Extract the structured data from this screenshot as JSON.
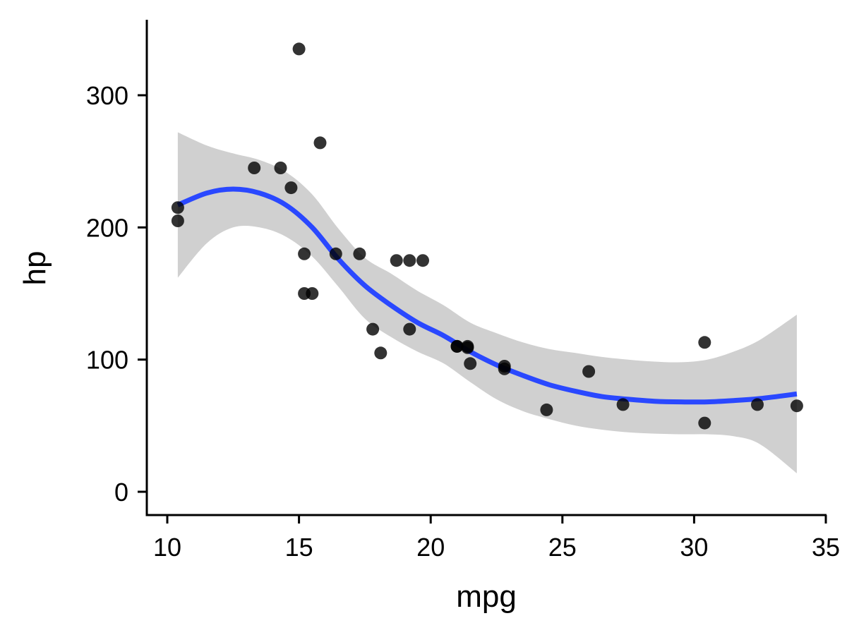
{
  "chart_data": {
    "type": "scatter",
    "title": "",
    "xlabel": "mpg",
    "ylabel": "hp",
    "xlim": [
      9.2,
      35
    ],
    "ylim": [
      -17,
      358
    ],
    "x_ticks": [
      10,
      15,
      20,
      25,
      30,
      35
    ],
    "y_ticks": [
      0,
      100,
      200,
      300
    ],
    "x_tick_labels": [
      "10",
      "15",
      "20",
      "25",
      "30",
      "35"
    ],
    "y_tick_labels": [
      "0",
      "100",
      "200",
      "300"
    ],
    "grid": false,
    "legend": "none",
    "colors": {
      "points": "#000000",
      "smooth_line": "#2A48FF",
      "confidence_band": "#D0D0D0"
    },
    "points": [
      {
        "x": 21.0,
        "y": 110
      },
      {
        "x": 21.0,
        "y": 110
      },
      {
        "x": 22.8,
        "y": 93
      },
      {
        "x": 21.4,
        "y": 110
      },
      {
        "x": 18.7,
        "y": 175
      },
      {
        "x": 18.1,
        "y": 105
      },
      {
        "x": 14.3,
        "y": 245
      },
      {
        "x": 24.4,
        "y": 62
      },
      {
        "x": 22.8,
        "y": 95
      },
      {
        "x": 19.2,
        "y": 123
      },
      {
        "x": 17.8,
        "y": 123
      },
      {
        "x": 16.4,
        "y": 180
      },
      {
        "x": 17.3,
        "y": 180
      },
      {
        "x": 15.2,
        "y": 180
      },
      {
        "x": 10.4,
        "y": 205
      },
      {
        "x": 10.4,
        "y": 215
      },
      {
        "x": 14.7,
        "y": 230
      },
      {
        "x": 32.4,
        "y": 66
      },
      {
        "x": 30.4,
        "y": 52
      },
      {
        "x": 33.9,
        "y": 65
      },
      {
        "x": 21.5,
        "y": 97
      },
      {
        "x": 15.5,
        "y": 150
      },
      {
        "x": 15.2,
        "y": 150
      },
      {
        "x": 13.3,
        "y": 245
      },
      {
        "x": 19.2,
        "y": 175
      },
      {
        "x": 27.3,
        "y": 66
      },
      {
        "x": 26.0,
        "y": 91
      },
      {
        "x": 30.4,
        "y": 113
      },
      {
        "x": 15.8,
        "y": 264
      },
      {
        "x": 19.7,
        "y": 175
      },
      {
        "x": 15.0,
        "y": 335
      },
      {
        "x": 21.4,
        "y": 109
      }
    ],
    "smooth": {
      "method": "loess",
      "x": [
        10.4,
        11.5,
        12.5,
        13.5,
        14.5,
        15.5,
        16.5,
        17.5,
        18.5,
        19.5,
        20.5,
        21.5,
        22.5,
        23.5,
        24.5,
        25.5,
        26.5,
        27.5,
        28.5,
        29.5,
        30.5,
        31.5,
        32.5,
        33.9
      ],
      "y": [
        217,
        226,
        229,
        226,
        217,
        200,
        176,
        156,
        141,
        128,
        118,
        106,
        96,
        88,
        81,
        76,
        72,
        70,
        68.5,
        68,
        68,
        69,
        70.5,
        74
      ],
      "lower": [
        162,
        188,
        200,
        200,
        193,
        178,
        155,
        131,
        117,
        106,
        97,
        83,
        70,
        61,
        55,
        50,
        47,
        45,
        44,
        43.5,
        43.5,
        42,
        36,
        14
      ],
      "upper": [
        272,
        262,
        256,
        251,
        242,
        225,
        199,
        177,
        165,
        152,
        141,
        128,
        120,
        113,
        108,
        105,
        102,
        100,
        98.5,
        98,
        100,
        106,
        115,
        134
      ]
    }
  }
}
